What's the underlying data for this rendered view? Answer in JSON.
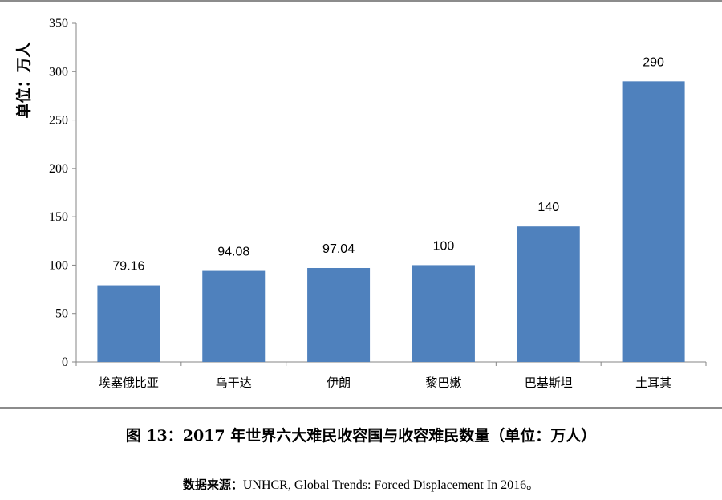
{
  "chart_data": {
    "type": "bar",
    "categories": [
      "埃塞俄比亚",
      "乌干达",
      "伊朗",
      "黎巴嫩",
      "巴基斯坦",
      "土耳其"
    ],
    "values": [
      79.16,
      94.08,
      97.04,
      100,
      140,
      290
    ],
    "value_labels": [
      "79.16",
      "94.08",
      "97.04",
      "100",
      "140",
      "290"
    ],
    "ylabel": "单位：万人",
    "ylim": [
      0,
      350
    ],
    "yticks": [
      0,
      50,
      100,
      150,
      200,
      250,
      300,
      350
    ],
    "bar_color": "#4f81bd",
    "grid": false
  },
  "caption": "图 13：2017 年世界六大难民收容国与收容难民数量（单位：万人）",
  "source": {
    "label": "数据来源：",
    "text": "UNHCR, Global Trends: Forced Displacement In 2016。"
  }
}
